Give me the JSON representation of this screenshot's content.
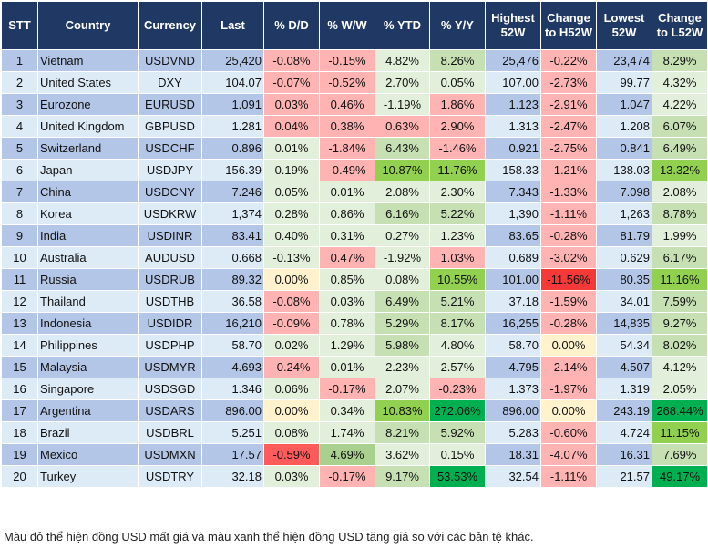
{
  "headers": [
    "STT",
    "Country",
    "Currency",
    "Last",
    "% D/D",
    "% W/W",
    "% YTD",
    "% Y/Y",
    "Highest 52W",
    "Change to H52W",
    "Lowest 52W",
    "Change to L52W"
  ],
  "palette": {
    "band_odd": "#b4c6e7",
    "band_even": "#ddebf7",
    "header": "#203864",
    "r": "#ffb3b3",
    "R": "#ff5b5b",
    "RR": "#f53838",
    "y": "#fff2cc",
    "g1": "#e2efda",
    "g2": "#c6e0b4",
    "g3": "#a9d08e",
    "g4": "#92d050",
    "g5": "#00b050"
  },
  "rows": [
    {
      "cells": [
        "1",
        "Vietnam",
        "USDVND",
        "25,420",
        "-0.08%",
        "-0.15%",
        "4.82%",
        "8.26%",
        "25,476",
        "-0.22%",
        "23,474",
        "8.29%"
      ],
      "colors": [
        "r",
        "r",
        "g1",
        "g2",
        "r",
        "g2"
      ]
    },
    {
      "cells": [
        "2",
        "United States",
        "DXY",
        "104.07",
        "-0.07%",
        "-0.52%",
        "2.70%",
        "0.05%",
        "107.00",
        "-2.73%",
        "99.77",
        "4.32%"
      ],
      "colors": [
        "r",
        "r",
        "g1",
        "g1",
        "r",
        "g1"
      ]
    },
    {
      "cells": [
        "3",
        "Eurozone",
        "EURUSD",
        "1.091",
        "0.03%",
        "0.46%",
        "-1.19%",
        "1.86%",
        "1.123",
        "-2.91%",
        "1.047",
        "4.22%"
      ],
      "colors": [
        "r",
        "r",
        "g1",
        "r",
        "r",
        "g1"
      ]
    },
    {
      "cells": [
        "4",
        "United Kingdom",
        "GBPUSD",
        "1.281",
        "0.04%",
        "0.38%",
        "0.63%",
        "2.90%",
        "1.313",
        "-2.47%",
        "1.208",
        "6.07%"
      ],
      "colors": [
        "r",
        "r",
        "r",
        "r",
        "r",
        "g2"
      ]
    },
    {
      "cells": [
        "5",
        "Switzerland",
        "USDCHF",
        "0.896",
        "0.01%",
        "-1.84%",
        "6.43%",
        "-1.46%",
        "0.921",
        "-2.75%",
        "0.841",
        "6.49%"
      ],
      "colors": [
        "g1",
        "r",
        "g2",
        "r",
        "r",
        "g2"
      ]
    },
    {
      "cells": [
        "6",
        "Japan",
        "USDJPY",
        "156.39",
        "0.19%",
        "-0.49%",
        "10.87%",
        "11.76%",
        "158.33",
        "-1.21%",
        "138.03",
        "13.32%"
      ],
      "colors": [
        "g1",
        "r",
        "g4",
        "g4",
        "r",
        "g4"
      ]
    },
    {
      "cells": [
        "7",
        "China",
        "USDCNY",
        "7.246",
        "0.05%",
        "0.01%",
        "2.08%",
        "2.30%",
        "7.343",
        "-1.33%",
        "7.098",
        "2.08%"
      ],
      "colors": [
        "g1",
        "g1",
        "g1",
        "g1",
        "r",
        "g1"
      ]
    },
    {
      "cells": [
        "8",
        "Korea",
        "USDKRW",
        "1,374",
        "0.28%",
        "0.86%",
        "6.16%",
        "5.22%",
        "1,390",
        "-1.11%",
        "1,263",
        "8.78%"
      ],
      "colors": [
        "g1",
        "g1",
        "g2",
        "g2",
        "r",
        "g2"
      ]
    },
    {
      "cells": [
        "9",
        "India",
        "USDINR",
        "83.41",
        "0.40%",
        "0.31%",
        "0.27%",
        "1.23%",
        "83.65",
        "-0.28%",
        "81.79",
        "1.99%"
      ],
      "colors": [
        "g1",
        "g1",
        "g1",
        "g1",
        "r",
        "g1"
      ]
    },
    {
      "cells": [
        "10",
        "Australia",
        "AUDUSD",
        "0.668",
        "-0.13%",
        "0.47%",
        "-1.92%",
        "1.03%",
        "0.689",
        "-3.02%",
        "0.629",
        "6.17%"
      ],
      "colors": [
        "g1",
        "r",
        "g1",
        "r",
        "r",
        "g2"
      ]
    },
    {
      "cells": [
        "11",
        "Russia",
        "USDRUB",
        "89.32",
        "0.00%",
        "0.85%",
        "0.08%",
        "10.55%",
        "101.00",
        "-11.56%",
        "80.35",
        "11.16%"
      ],
      "colors": [
        "y",
        "g1",
        "g1",
        "g4",
        "RR",
        "g4"
      ]
    },
    {
      "cells": [
        "12",
        "Thailand",
        "USDTHB",
        "36.58",
        "-0.08%",
        "0.03%",
        "6.49%",
        "5.21%",
        "37.18",
        "-1.59%",
        "34.01",
        "7.59%"
      ],
      "colors": [
        "r",
        "g1",
        "g2",
        "g2",
        "r",
        "g2"
      ]
    },
    {
      "cells": [
        "13",
        "Indonesia",
        "USDIDR",
        "16,210",
        "-0.09%",
        "0.78%",
        "5.29%",
        "8.17%",
        "16,255",
        "-0.28%",
        "14,835",
        "9.27%"
      ],
      "colors": [
        "r",
        "g1",
        "g2",
        "g2",
        "r",
        "g2"
      ]
    },
    {
      "cells": [
        "14",
        "Philippines",
        "USDPHP",
        "58.70",
        "0.02%",
        "1.29%",
        "5.98%",
        "4.80%",
        "58.70",
        "0.00%",
        "54.34",
        "8.02%"
      ],
      "colors": [
        "g1",
        "g1",
        "g2",
        "g1",
        "y",
        "g2"
      ]
    },
    {
      "cells": [
        "15",
        "Malaysia",
        "USDMYR",
        "4.693",
        "-0.24%",
        "0.01%",
        "2.23%",
        "2.57%",
        "4.795",
        "-2.14%",
        "4.507",
        "4.12%"
      ],
      "colors": [
        "r",
        "g1",
        "g1",
        "g1",
        "r",
        "g1"
      ]
    },
    {
      "cells": [
        "16",
        "Singapore",
        "USDSGD",
        "1.346",
        "0.06%",
        "-0.17%",
        "2.07%",
        "-0.23%",
        "1.373",
        "-1.97%",
        "1.319",
        "2.05%"
      ],
      "colors": [
        "g1",
        "r",
        "g1",
        "r",
        "r",
        "g1"
      ]
    },
    {
      "cells": [
        "17",
        "Argentina",
        "USDARS",
        "896.00",
        "0.00%",
        "0.34%",
        "10.83%",
        "272.06%",
        "896.00",
        "0.00%",
        "243.19",
        "268.44%"
      ],
      "colors": [
        "y",
        "g1",
        "g4",
        "g5",
        "y",
        "g5"
      ]
    },
    {
      "cells": [
        "18",
        "Brazil",
        "USDBRL",
        "5.251",
        "0.08%",
        "1.74%",
        "8.21%",
        "5.92%",
        "5.283",
        "-0.60%",
        "4.724",
        "11.15%"
      ],
      "colors": [
        "g1",
        "g1",
        "g2",
        "g2",
        "r",
        "g4"
      ]
    },
    {
      "cells": [
        "19",
        "Mexico",
        "USDMXN",
        "17.57",
        "-0.59%",
        "4.69%",
        "3.62%",
        "0.15%",
        "18.31",
        "-4.07%",
        "16.31",
        "7.69%"
      ],
      "colors": [
        "R",
        "g3",
        "g1",
        "g1",
        "r",
        "g2"
      ]
    },
    {
      "cells": [
        "20",
        "Turkey",
        "USDTRY",
        "32.18",
        "0.03%",
        "-0.17%",
        "9.17%",
        "53.53%",
        "32.54",
        "-1.11%",
        "21.57",
        "49.17%"
      ],
      "colors": [
        "g1",
        "r",
        "g2",
        "g5",
        "r",
        "g5"
      ]
    }
  ],
  "footnote": "Màu đỏ thể hiện đồng USD mất giá và màu xanh thể hiện đồng USD tăng giá so với các bản tệ khác."
}
